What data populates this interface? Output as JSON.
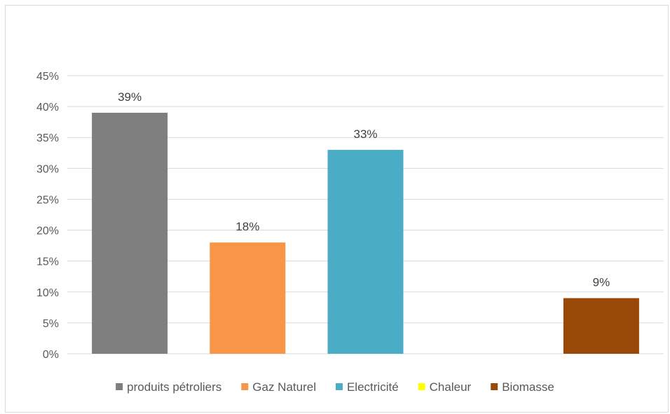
{
  "chart_data": {
    "type": "bar",
    "title": "",
    "xlabel": "",
    "ylabel": "",
    "categories": [
      "produits pétroliers",
      "Gaz Naturel",
      "Electricité",
      "Chaleur",
      "Biomasse"
    ],
    "values": [
      39,
      18,
      33,
      0,
      9
    ],
    "data_labels": [
      "39%",
      "18%",
      "33%",
      "",
      "9%"
    ],
    "colors": [
      "#7f7f7f",
      "#f79646",
      "#4bacc6",
      "#ffff00",
      "#984807"
    ],
    "ylim": [
      0,
      45
    ],
    "yticks": [
      0,
      5,
      10,
      15,
      20,
      25,
      30,
      35,
      40,
      45
    ],
    "ytick_labels": [
      "0%",
      "5%",
      "10%",
      "15%",
      "20%",
      "25%",
      "30%",
      "35%",
      "40%",
      "45%"
    ],
    "grid": true,
    "legend": "bottom"
  }
}
